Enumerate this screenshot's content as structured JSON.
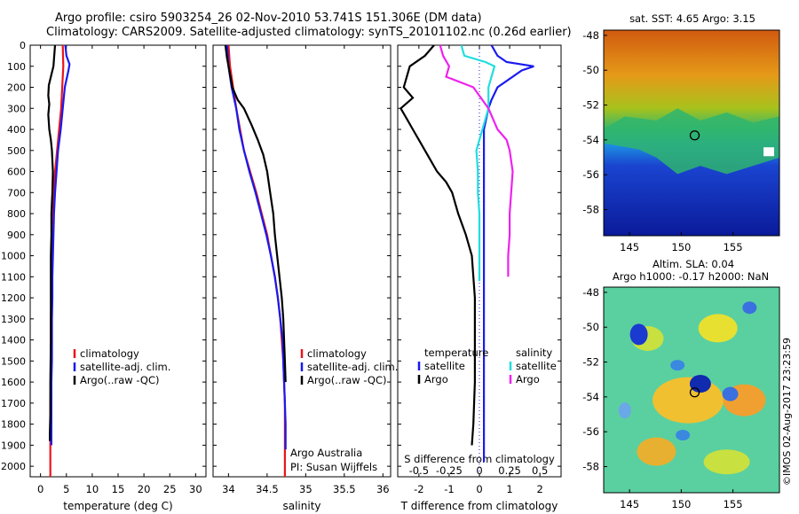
{
  "header": {
    "title_line1": "Argo profile: csiro 5903254_26 02-Nov-2010 53.741S 151.306E (DM data)",
    "title_line2": "Climatology: CARS2009. Satellite-adjusted climatology: synTS_20101102.nc (0.26d earlier)"
  },
  "depth_ticks": [
    0,
    100,
    200,
    300,
    400,
    500,
    600,
    700,
    800,
    900,
    1000,
    1100,
    1200,
    1300,
    1400,
    1500,
    1600,
    1700,
    1800,
    1900,
    2000
  ],
  "colors": {
    "climatology": "#e8161b",
    "satellite": "#1a1aee",
    "argo": "#000000",
    "sal_sat": "#22dddd",
    "sal_argo": "#ee22ee"
  },
  "chart_data": [
    {
      "type": "line",
      "panel": "temperature",
      "xlabel": "temperature (deg C)",
      "xlim": [
        -2,
        32
      ],
      "xticks": [
        0,
        5,
        10,
        15,
        20,
        25,
        30
      ],
      "ylim": [
        2050,
        0
      ],
      "legend": [
        "climatology",
        "satellite-adj. clim.",
        "Argo(..raw -QC)"
      ],
      "series": [
        {
          "name": "climatology",
          "color": "#e8161b",
          "x": [
            4.3,
            4.4,
            4.2,
            4.0,
            3.6,
            3.2,
            2.8,
            2.5,
            2.4,
            2.3,
            2.2,
            2.1,
            2.1,
            2.0,
            2.0,
            2.0,
            2.0,
            1.9,
            1.9,
            1.9,
            1.9,
            1.9
          ],
          "y": [
            0,
            100,
            200,
            300,
            400,
            500,
            600,
            700,
            800,
            900,
            1000,
            1100,
            1200,
            1300,
            1400,
            1500,
            1600,
            1700,
            1800,
            1900,
            2000,
            2050
          ]
        },
        {
          "name": "satellite-adj. clim.",
          "color": "#1a1aee",
          "x": [
            4.8,
            5.0,
            5.6,
            5.4,
            4.7,
            4.3,
            3.9,
            3.4,
            3.1,
            2.8,
            2.6,
            2.5,
            2.4,
            2.3,
            2.3,
            2.2,
            2.2,
            2.2,
            2.1,
            2.1,
            2.1,
            2.1
          ],
          "y": [
            0,
            50,
            90,
            120,
            200,
            300,
            400,
            500,
            600,
            700,
            800,
            900,
            1000,
            1100,
            1200,
            1300,
            1400,
            1500,
            1600,
            1700,
            1800,
            1900
          ]
        },
        {
          "name": "Argo(..raw -QC)",
          "color": "#000000",
          "x": [
            2.8,
            2.5,
            2.0,
            1.6,
            1.5,
            1.7,
            1.5,
            1.7,
            2.0,
            2.2,
            2.4,
            2.3,
            2.1,
            2.1,
            2.0,
            2.0,
            2.0,
            1.9,
            1.9,
            1.8,
            1.8
          ],
          "y": [
            0,
            100,
            150,
            190,
            240,
            280,
            330,
            400,
            450,
            500,
            600,
            700,
            800,
            900,
            1000,
            1200,
            1400,
            1600,
            1750,
            1850,
            1880
          ]
        }
      ]
    },
    {
      "type": "line",
      "panel": "salinity",
      "xlabel": "salinity",
      "xlim": [
        33.8,
        36.1
      ],
      "xticks": [
        34,
        34.5,
        35,
        35.5,
        36
      ],
      "ylim": [
        2050,
        0
      ],
      "legend": [
        "climatology",
        "satellite-adj. clim.",
        "Argo(..raw -QC)"
      ],
      "annotation_line1": "Argo Australia",
      "annotation_line2": "PI: Susan Wijffels",
      "series": [
        {
          "name": "climatology",
          "color": "#e8161b",
          "x": [
            34.0,
            34.02,
            34.06,
            34.1,
            34.15,
            34.2,
            34.28,
            34.36,
            34.43,
            34.5,
            34.55,
            34.6,
            34.64,
            34.67,
            34.69,
            34.71,
            34.72,
            34.73,
            34.73,
            34.73,
            34.73
          ],
          "y": [
            0,
            100,
            200,
            300,
            400,
            500,
            600,
            700,
            800,
            900,
            1000,
            1100,
            1200,
            1300,
            1400,
            1500,
            1600,
            1700,
            1800,
            1900,
            2050
          ]
        },
        {
          "name": "satellite-adj. clim.",
          "color": "#1a1aee",
          "x": [
            33.98,
            34.0,
            34.04,
            34.1,
            34.14,
            34.2,
            34.27,
            34.35,
            34.42,
            34.49,
            34.55,
            34.6,
            34.64,
            34.67,
            34.7,
            34.71,
            34.72,
            34.73,
            34.74,
            34.74
          ],
          "y": [
            0,
            100,
            200,
            300,
            400,
            500,
            600,
            700,
            800,
            900,
            1000,
            1100,
            1200,
            1300,
            1400,
            1500,
            1600,
            1700,
            1800,
            1920
          ]
        },
        {
          "name": "Argo(..raw -QC)",
          "color": "#000000",
          "x": [
            33.96,
            33.98,
            34.05,
            34.12,
            34.2,
            34.3,
            34.38,
            34.45,
            34.5,
            34.54,
            34.58,
            34.6,
            34.63,
            34.66,
            34.69,
            34.71,
            34.72,
            34.73,
            34.74
          ],
          "y": [
            0,
            60,
            200,
            260,
            300,
            380,
            450,
            520,
            600,
            700,
            800,
            900,
            1000,
            1100,
            1200,
            1300,
            1400,
            1500,
            1600
          ]
        }
      ]
    },
    {
      "type": "line",
      "panel": "difference",
      "xlabel_top": "S difference from climatology",
      "xlabel": "T difference from climatology",
      "xlim": [
        -2.7,
        2.7
      ],
      "t_ticks": [
        -2,
        -1,
        0,
        1,
        2
      ],
      "s_ticks": [
        "-0.5",
        "-0.25",
        "0",
        "0.25",
        "0.5"
      ],
      "s_tick_pos": [
        -2,
        -1,
        0,
        1,
        2
      ],
      "ylim": [
        2050,
        0
      ],
      "legend_temp_title": "temperature",
      "legend_sal_title": "salinity",
      "legend_satellite": "satellite",
      "legend_argo": "Argo",
      "series": [
        {
          "name": "temperature satellite",
          "color": "#1a1aee",
          "x": [
            0.4,
            0.6,
            0.9,
            1.8,
            1.4,
            0.6,
            0.4,
            0.3,
            0.15,
            0.15,
            0.15,
            0.15,
            0.15,
            0.15,
            0.15,
            0.15,
            0.15,
            0.15,
            0.15,
            0.15
          ],
          "y": [
            0,
            50,
            80,
            100,
            120,
            200,
            260,
            300,
            400,
            600,
            800,
            1000,
            1200,
            1400,
            1600,
            1700,
            1800,
            1900,
            1950,
            1980
          ]
        },
        {
          "name": "temperature Argo",
          "color": "#000000",
          "x": [
            -1.5,
            -1.8,
            -2.3,
            -2.5,
            -2.2,
            -2.6,
            -2.4,
            -2.2,
            -2.0,
            -1.8,
            -1.6,
            -1.4,
            -1.1,
            -0.9,
            -0.7,
            -0.45,
            -0.25,
            -0.2,
            -0.15,
            -0.15,
            -0.15,
            -0.2,
            -0.25
          ],
          "y": [
            0,
            50,
            100,
            200,
            250,
            300,
            350,
            400,
            450,
            500,
            550,
            600,
            650,
            700,
            800,
            900,
            1000,
            1100,
            1200,
            1400,
            1600,
            1800,
            1900
          ]
        },
        {
          "name": "salinity satellite",
          "color": "#22dddd",
          "x": [
            -0.6,
            -0.5,
            0.2,
            0.5,
            0.3,
            0.3,
            0.1,
            -0.1,
            -0.05,
            -0.05,
            0.0,
            0.0,
            0.0,
            0.0,
            0.0
          ],
          "y": [
            0,
            50,
            80,
            100,
            200,
            300,
            400,
            500,
            600,
            700,
            800,
            900,
            1000,
            1100,
            1120
          ]
        },
        {
          "name": "salinity Argo",
          "color": "#ee22ee",
          "x": [
            -1.3,
            -1.2,
            -1.0,
            -1.1,
            -0.2,
            0.3,
            0.6,
            0.9,
            1.0,
            1.1,
            1.05,
            1.0,
            1.0,
            0.95,
            0.95
          ],
          "y": [
            0,
            50,
            100,
            150,
            200,
            300,
            400,
            450,
            500,
            600,
            700,
            800,
            900,
            1000,
            1100
          ]
        }
      ]
    },
    {
      "type": "heatmap",
      "panel": "sst_map",
      "title": "sat. SST: 4.65  Argo: 3.15",
      "xlim": [
        142.5,
        159.5
      ],
      "ylim": [
        -59.5,
        -47.7
      ],
      "xticks": [
        145,
        150,
        155
      ],
      "yticks": [
        -48,
        -50,
        -52,
        -54,
        -56,
        -58
      ],
      "argo_position": {
        "lon": 151.3,
        "lat": -53.74
      }
    },
    {
      "type": "heatmap",
      "panel": "sla_map",
      "title_line1": "Altim. SLA: 0.04",
      "title_line2": "Argo h1000: -0.17 h2000: NaN",
      "xlim": [
        142.5,
        159.5
      ],
      "ylim": [
        -59.5,
        -47.7
      ],
      "xticks": [
        145,
        150,
        155
      ],
      "yticks": [
        -48,
        -50,
        -52,
        -54,
        -56,
        -58
      ],
      "argo_position": {
        "lon": 151.3,
        "lat": -53.74
      }
    }
  ],
  "footer_stamp": "©IMOS 02-Aug-2017 23:23:59"
}
